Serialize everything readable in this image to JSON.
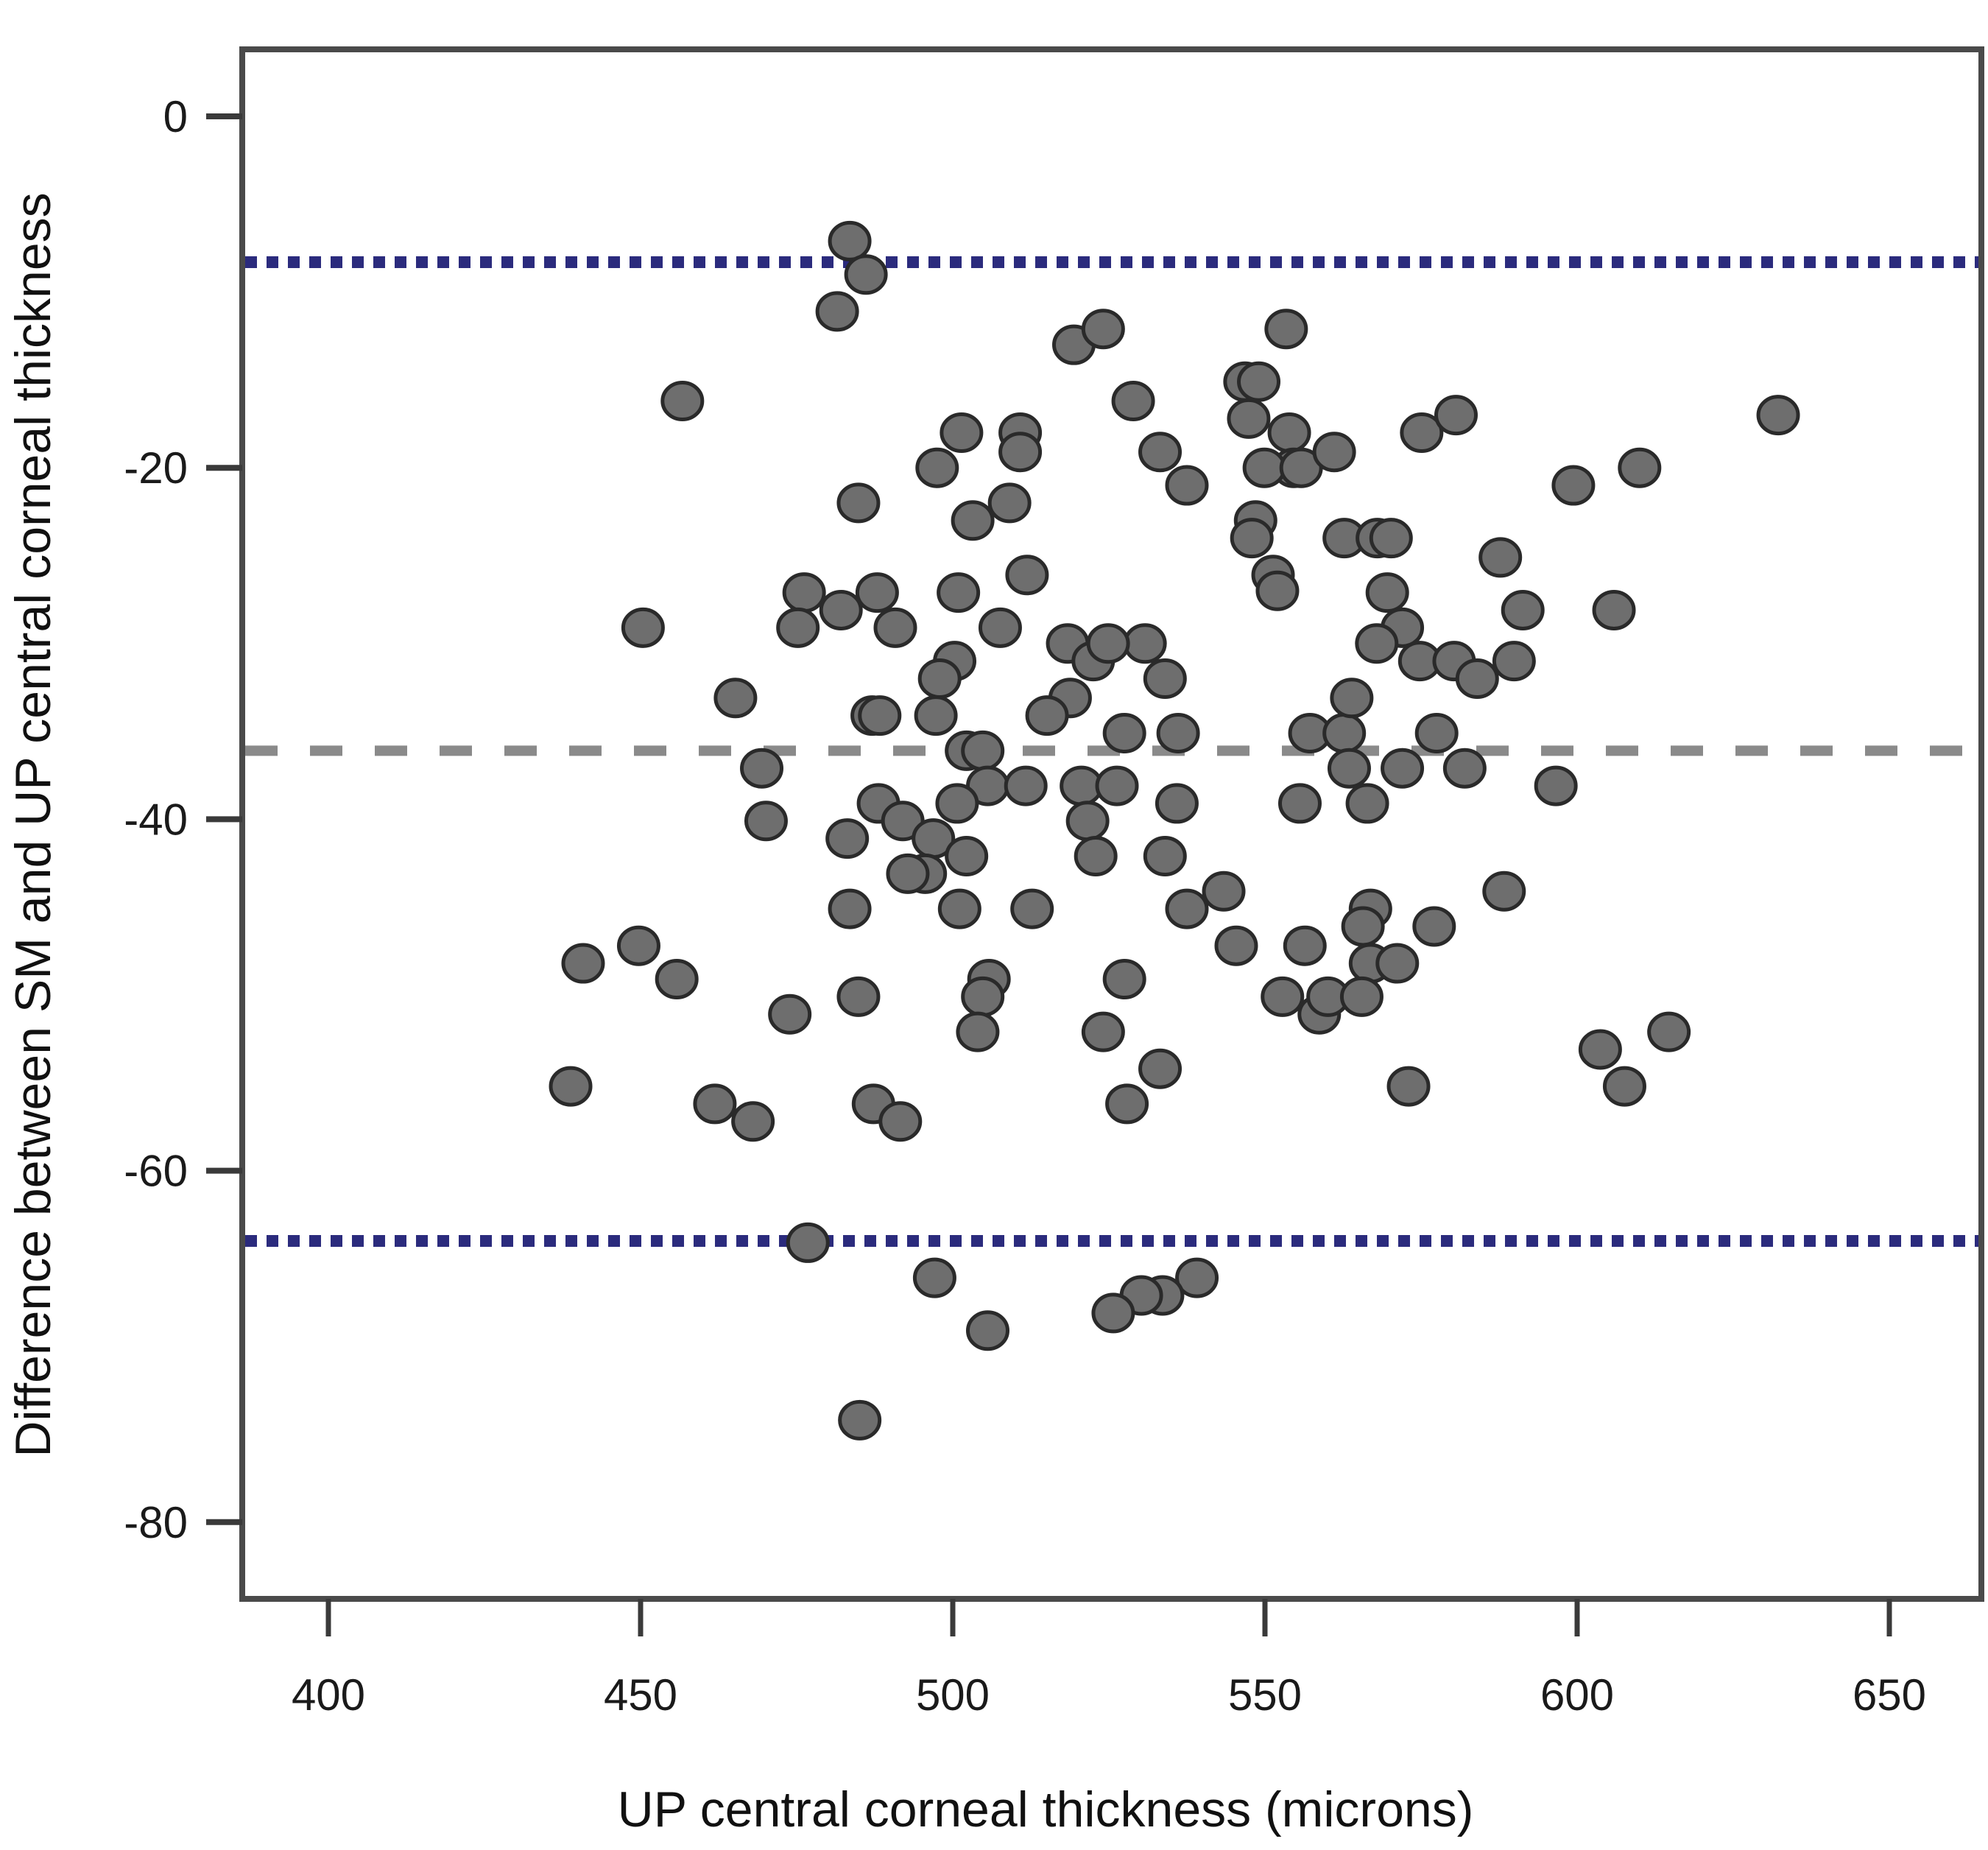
{
  "chart_data": {
    "type": "scatter",
    "title": "",
    "xlabel": "UP central corneal thickness (microns)",
    "ylabel": "Difference between SM and UP central corneal thickness",
    "xlim": [
      386,
      665
    ],
    "ylim": [
      -85,
      4
    ],
    "x_ticks": [
      400,
      450,
      500,
      550,
      600,
      650
    ],
    "x_tick_labels": [
      "400",
      "450",
      "500",
      "550",
      "600",
      "650"
    ],
    "y_ticks": [
      0,
      -20,
      -40,
      -60,
      -80
    ],
    "y_tick_labels": [
      "0",
      "-20",
      "-40",
      "-60",
      "-80"
    ],
    "grid": false,
    "legend": "none",
    "reference_lines": [
      {
        "name": "upper-limit-of-agreement",
        "y": -8.3,
        "style": "dotted",
        "color": "#2b2b7d"
      },
      {
        "name": "mean-difference",
        "y": -36.1,
        "style": "dashed",
        "color": "#8a8a8a"
      },
      {
        "name": "lower-limit-of-agreement",
        "y": -64.0,
        "style": "dotted",
        "color": "#2b2b7d"
      }
    ],
    "marker": {
      "fill": "#6e6e6e",
      "stroke": "#2a2a2a"
    },
    "points": [
      [
        483.5,
        -7.1
      ],
      [
        486.1,
        -9.0
      ],
      [
        481.5,
        -11.1
      ],
      [
        456.7,
        -16.2
      ],
      [
        519.4,
        -13.0
      ],
      [
        524.1,
        -12.1
      ],
      [
        553.4,
        -12.1
      ],
      [
        528.9,
        -16.2
      ],
      [
        546.8,
        -15.1
      ],
      [
        549.0,
        -15.1
      ],
      [
        547.4,
        -17.2
      ],
      [
        553.9,
        -18.0
      ],
      [
        554.6,
        -20.0
      ],
      [
        549.9,
        -20.0
      ],
      [
        555.8,
        -20.0
      ],
      [
        561.1,
        -19.1
      ],
      [
        575.1,
        -18.0
      ],
      [
        580.6,
        -17.0
      ],
      [
        632.2,
        -17.0
      ],
      [
        533.2,
        -19.1
      ],
      [
        537.5,
        -21.0
      ],
      [
        501.4,
        -18.0
      ],
      [
        510.8,
        -18.0
      ],
      [
        510.8,
        -19.1
      ],
      [
        497.5,
        -20.0
      ],
      [
        509.1,
        -22.0
      ],
      [
        503.2,
        -23.0
      ],
      [
        484.9,
        -22.0
      ],
      [
        599.4,
        -21.0
      ],
      [
        610.0,
        -20.0
      ],
      [
        548.5,
        -23.0
      ],
      [
        547.9,
        -24.0
      ],
      [
        562.7,
        -24.0
      ],
      [
        568.0,
        -24.0
      ],
      [
        570.2,
        -24.0
      ],
      [
        587.7,
        -25.1
      ],
      [
        551.3,
        -26.1
      ],
      [
        552.0,
        -27.0
      ],
      [
        511.9,
        -26.1
      ],
      [
        569.6,
        -27.1
      ],
      [
        476.2,
        -27.1
      ],
      [
        482.1,
        -28.1
      ],
      [
        487.9,
        -27.1
      ],
      [
        490.8,
        -29.1
      ],
      [
        450.4,
        -29.1
      ],
      [
        475.2,
        -29.1
      ],
      [
        500.9,
        -27.1
      ],
      [
        507.6,
        -29.1
      ],
      [
        591.3,
        -28.1
      ],
      [
        605.9,
        -28.1
      ],
      [
        572.0,
        -29.1
      ],
      [
        567.9,
        -30.0
      ],
      [
        574.8,
        -31.0
      ],
      [
        580.3,
        -31.0
      ],
      [
        584.0,
        -32.0
      ],
      [
        589.9,
        -31.0
      ],
      [
        518.4,
        -30.0
      ],
      [
        522.5,
        -31.0
      ],
      [
        530.8,
        -30.0
      ],
      [
        524.9,
        -30.0
      ],
      [
        500.3,
        -31.0
      ],
      [
        497.9,
        -32.0
      ],
      [
        534.0,
        -32.0
      ],
      [
        465.2,
        -33.1
      ],
      [
        518.8,
        -33.1
      ],
      [
        515.1,
        -34.1
      ],
      [
        487.1,
        -34.1
      ],
      [
        488.3,
        -34.1
      ],
      [
        497.3,
        -34.1
      ],
      [
        502.2,
        -36.1
      ],
      [
        504.8,
        -36.1
      ],
      [
        527.5,
        -35.1
      ],
      [
        536.1,
        -35.1
      ],
      [
        557.2,
        -35.1
      ],
      [
        562.7,
        -35.1
      ],
      [
        563.9,
        -33.1
      ],
      [
        563.5,
        -37.1
      ],
      [
        572.0,
        -37.1
      ],
      [
        577.5,
        -35.1
      ],
      [
        582.0,
        -37.1
      ],
      [
        469.4,
        -37.1
      ],
      [
        505.6,
        -38.1
      ],
      [
        511.7,
        -38.1
      ],
      [
        520.6,
        -38.1
      ],
      [
        526.3,
        -38.1
      ],
      [
        596.6,
        -38.1
      ],
      [
        555.6,
        -39.1
      ],
      [
        566.4,
        -39.1
      ],
      [
        535.9,
        -39.1
      ],
      [
        521.6,
        -40.1
      ],
      [
        500.7,
        -39.1
      ],
      [
        470.1,
        -40.1
      ],
      [
        483.1,
        -41.1
      ],
      [
        488.1,
        -39.1
      ],
      [
        492.0,
        -40.1
      ],
      [
        496.9,
        -41.1
      ],
      [
        502.2,
        -42.1
      ],
      [
        495.6,
        -43.1
      ],
      [
        492.8,
        -43.1
      ],
      [
        522.9,
        -42.1
      ],
      [
        534.0,
        -42.1
      ],
      [
        588.3,
        -44.1
      ],
      [
        543.4,
        -44.1
      ],
      [
        537.5,
        -45.1
      ],
      [
        512.7,
        -45.1
      ],
      [
        501.1,
        -45.1
      ],
      [
        483.5,
        -45.1
      ],
      [
        449.7,
        -47.2
      ],
      [
        440.8,
        -48.2
      ],
      [
        455.8,
        -49.1
      ],
      [
        545.4,
        -47.2
      ],
      [
        556.4,
        -47.2
      ],
      [
        566.9,
        -45.1
      ],
      [
        565.7,
        -46.1
      ],
      [
        566.9,
        -48.2
      ],
      [
        571.2,
        -48.2
      ],
      [
        577.1,
        -46.1
      ],
      [
        505.8,
        -49.1
      ],
      [
        504.8,
        -50.1
      ],
      [
        504.0,
        -52.1
      ],
      [
        527.5,
        -49.1
      ],
      [
        552.8,
        -50.1
      ],
      [
        558.7,
        -51.1
      ],
      [
        560.1,
        -50.1
      ],
      [
        565.5,
        -50.1
      ],
      [
        484.9,
        -50.1
      ],
      [
        473.9,
        -51.1
      ],
      [
        524.1,
        -52.1
      ],
      [
        614.7,
        -52.1
      ],
      [
        603.7,
        -53.1
      ],
      [
        607.6,
        -55.2
      ],
      [
        438.8,
        -55.2
      ],
      [
        461.9,
        -56.2
      ],
      [
        468.0,
        -57.2
      ],
      [
        487.3,
        -56.2
      ],
      [
        491.6,
        -57.2
      ],
      [
        533.2,
        -54.2
      ],
      [
        527.9,
        -56.2
      ],
      [
        573.0,
        -55.2
      ],
      [
        476.8,
        -64.1
      ],
      [
        497.1,
        -66.1
      ],
      [
        539.1,
        -66.1
      ],
      [
        533.6,
        -67.1
      ],
      [
        530.2,
        -67.1
      ],
      [
        525.7,
        -68.1
      ],
      [
        505.6,
        -69.1
      ],
      [
        485.1,
        -74.2
      ]
    ]
  }
}
